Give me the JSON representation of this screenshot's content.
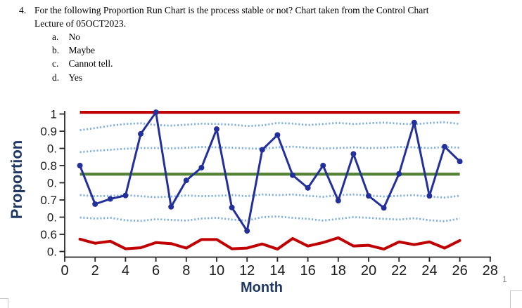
{
  "page": {
    "number": "1"
  },
  "question": {
    "number": "4.",
    "text_lines": [
      "For the following Proportion Run Chart is the process stable or not? Chart taken from the Control Chart",
      "Lecture of 05OCT2023."
    ],
    "options": [
      {
        "letter": "a.",
        "label": "No"
      },
      {
        "letter": "b.",
        "label": "Maybe"
      },
      {
        "letter": "c.",
        "label": "Cannot tell."
      },
      {
        "letter": "d.",
        "label": "Yes"
      }
    ]
  },
  "chart_data": {
    "type": "line",
    "title": "",
    "xlabel": "Month",
    "ylabel": "Proportion",
    "grid": false,
    "legend": "none",
    "x_axis": {
      "ticks": [
        0,
        2,
        4,
        6,
        8,
        10,
        12,
        14,
        16,
        18,
        20,
        22,
        24,
        26,
        28
      ],
      "range": [
        0,
        28
      ]
    },
    "y_axis": {
      "tick_labels": [
        "1",
        "0.9",
        "0.",
        "0.8",
        "0.",
        "0.7",
        "0.",
        "0.6",
        "0."
      ],
      "tick_values": [
        0.95,
        0.9,
        0.85,
        0.8,
        0.75,
        0.7,
        0.65,
        0.6,
        0.55
      ],
      "range": [
        0.53,
        0.97
      ]
    },
    "months": [
      1,
      2,
      3,
      4,
      5,
      6,
      7,
      8,
      9,
      10,
      11,
      12,
      13,
      14,
      15,
      16,
      17,
      18,
      19,
      20,
      21,
      22,
      23,
      24,
      25,
      26
    ],
    "proportion": [
      0.8,
      0.688,
      0.703,
      0.713,
      0.892,
      0.955,
      0.68,
      0.757,
      0.794,
      0.906,
      0.678,
      0.61,
      0.846,
      0.889,
      0.772,
      0.735,
      0.8,
      0.698,
      0.834,
      0.712,
      0.677,
      0.776,
      0.925,
      0.712,
      0.855,
      0.812
    ],
    "center_line": 0.775,
    "ucl": 0.955,
    "lcl": [
      0.586,
      0.574,
      0.58,
      0.558,
      0.561,
      0.576,
      0.573,
      0.56,
      0.585,
      0.585,
      0.558,
      0.56,
      0.572,
      0.557,
      0.588,
      0.566,
      0.576,
      0.59,
      0.566,
      0.568,
      0.557,
      0.578,
      0.57,
      0.578,
      0.56,
      0.582
    ],
    "sigma_bands": {
      "plus2": [
        0.903,
        0.909,
        0.916,
        0.921,
        0.923,
        0.918,
        0.916,
        0.919,
        0.922,
        0.921,
        0.919,
        0.915,
        0.917,
        0.924,
        0.922,
        0.918,
        0.921,
        0.924,
        0.921,
        0.923,
        0.925,
        0.922,
        0.92,
        0.924,
        0.926,
        0.921
      ],
      "plus1": [
        0.839,
        0.843,
        0.846,
        0.849,
        0.851,
        0.851,
        0.85,
        0.852,
        0.854,
        0.853,
        0.852,
        0.85,
        0.849,
        0.853,
        0.855,
        0.852,
        0.85,
        0.851,
        0.853,
        0.851,
        0.852,
        0.854,
        0.853,
        0.851,
        0.854,
        0.852
      ],
      "minus1": [
        0.714,
        0.711,
        0.712,
        0.714,
        0.711,
        0.708,
        0.71,
        0.713,
        0.711,
        0.712,
        0.714,
        0.711,
        0.716,
        0.714,
        0.716,
        0.712,
        0.709,
        0.714,
        0.716,
        0.713,
        0.71,
        0.712,
        0.714,
        0.71,
        0.707,
        0.712
      ],
      "minus2": [
        0.649,
        0.646,
        0.648,
        0.641,
        0.639,
        0.644,
        0.642,
        0.64,
        0.646,
        0.648,
        0.643,
        0.64,
        0.65,
        0.652,
        0.648,
        0.645,
        0.64,
        0.645,
        0.65,
        0.648,
        0.645,
        0.643,
        0.647,
        0.641,
        0.638,
        0.646
      ]
    },
    "colors": {
      "data_line": "#232F9B",
      "control_limits": "#C00000",
      "center_line": "#548235",
      "sigma_dots": "#7FB0E0",
      "axis": "#262626",
      "axis_title": "#1F3864"
    }
  }
}
